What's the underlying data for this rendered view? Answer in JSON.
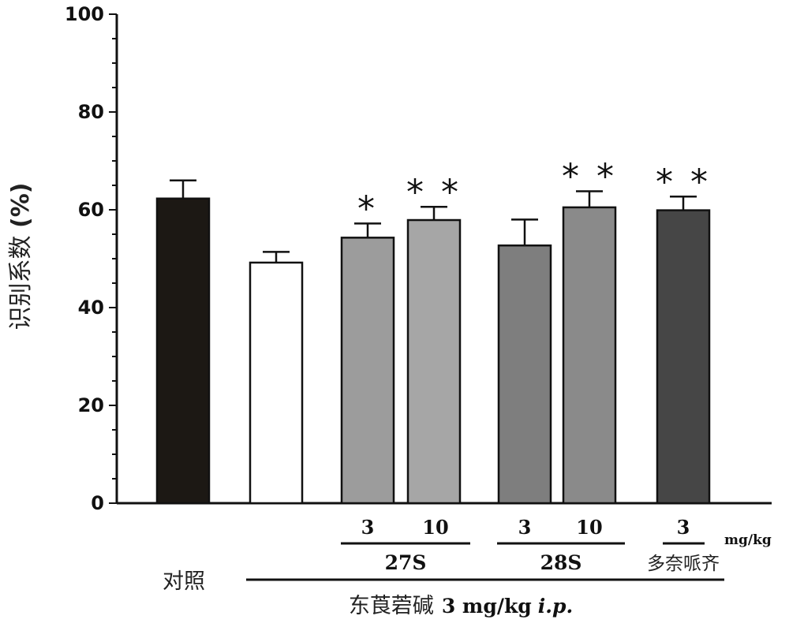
{
  "chart_data": {
    "type": "bar",
    "ylabel_cn": "识别系数",
    "ylabel_unit": "(%)",
    "ylim": [
      0,
      100
    ],
    "yticks": [
      "0",
      "20",
      "40",
      "60",
      "80",
      "100"
    ],
    "bars": [
      {
        "value": 62.3,
        "error": 3.7,
        "color": "#1c1814",
        "sig": ""
      },
      {
        "value": 49.2,
        "error": 2.2,
        "color": "#ffffff",
        "sig": ""
      },
      {
        "value": 54.3,
        "error": 2.9,
        "color": "#9c9c9c",
        "sig": "*"
      },
      {
        "value": 57.9,
        "error": 2.7,
        "color": "#a6a6a6",
        "sig": "**"
      },
      {
        "value": 52.7,
        "error": 5.3,
        "color": "#7e7e7e",
        "sig": ""
      },
      {
        "value": 60.5,
        "error": 3.3,
        "color": "#8a8a8a",
        "sig": "**"
      },
      {
        "value": 59.9,
        "error": 2.8,
        "color": "#464646",
        "sig": "**"
      }
    ],
    "doses": [
      "3",
      "10",
      "3",
      "10",
      "3"
    ],
    "dose_unit": "mg/kg",
    "groups": [
      "27S",
      "28S",
      "多奈哌齐"
    ],
    "control_label": "对照",
    "treatment_label_cn": "东莨菪碱",
    "treatment_label_dose": "3 mg/kg",
    "treatment_label_route": "i.p."
  }
}
